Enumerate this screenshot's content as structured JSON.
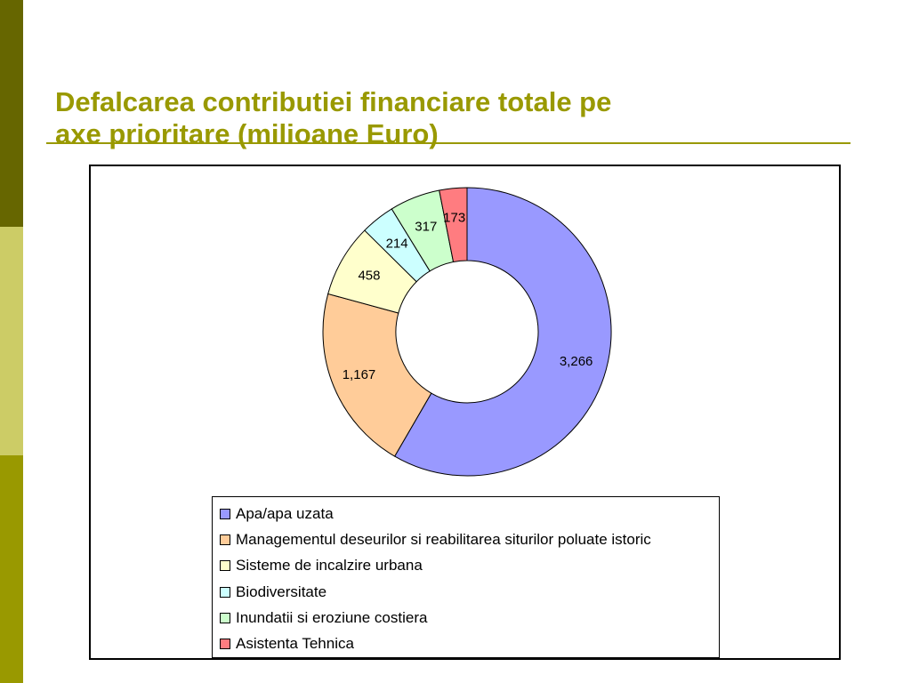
{
  "title": {
    "line1": "Defalcarea contributiei financiare totale pe",
    "line2": "axe prioritare (milioane Euro)"
  },
  "colors": {
    "accent": "#999900",
    "sidebar_top": "#666600",
    "sidebar_mid": "#cccc66",
    "sidebar_bottom": "#999900"
  },
  "chart_data": {
    "type": "pie",
    "variant": "doughnut",
    "title": "",
    "legend_position": "bottom",
    "categories": [
      "Apa/apa uzata",
      "Managementul deseurilor si reabilitarea siturilor poluate istoric",
      "Sisteme de incalzire urbana",
      "Biodiversitate",
      "Inundatii si eroziune costiera",
      "Asistenta Tehnica"
    ],
    "values": [
      3266,
      1167,
      458,
      214,
      317,
      173
    ],
    "value_labels": [
      "3,266",
      "1,167",
      "458",
      "214",
      "317",
      "173"
    ],
    "colors": [
      "#9999ff",
      "#ffcc99",
      "#ffffcc",
      "#ccffff",
      "#ccffcc",
      "#ff7c80"
    ]
  }
}
